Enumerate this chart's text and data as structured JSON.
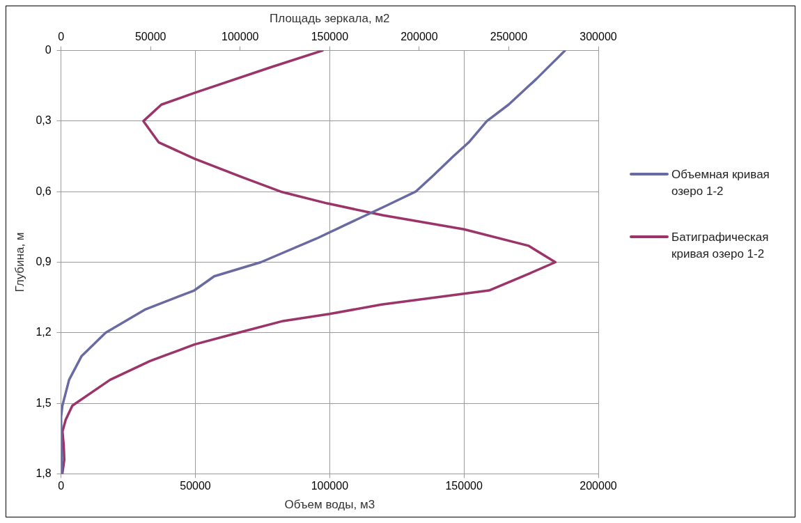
{
  "chart_data": {
    "type": "line",
    "xlabel": "Объем воды, м3",
    "x2label": "Площадь зеркала, м2",
    "ylabel": "Глубина, м",
    "xlim": [
      0,
      200000
    ],
    "xticks": [
      0,
      50000,
      100000,
      150000,
      200000
    ],
    "x2lim": [
      0,
      300000
    ],
    "x2ticks": [
      0,
      50000,
      100000,
      150000,
      200000,
      250000,
      300000
    ],
    "ylim": [
      1.8,
      0
    ],
    "yticks": [
      {
        "value": 0,
        "label": "0"
      },
      {
        "value": 0.3,
        "label": "0,3"
      },
      {
        "value": 0.6,
        "label": "0,6"
      },
      {
        "value": 0.9,
        "label": "0,9"
      },
      {
        "value": 1.2,
        "label": "1,2"
      },
      {
        "value": 1.5,
        "label": "1,5"
      },
      {
        "value": 1.8,
        "label": "1,8"
      }
    ],
    "grid": true,
    "legend": "right",
    "marker": "none",
    "line_style": "solid",
    "series": [
      {
        "name": "Объемная кривая озеро 1-2",
        "color": "#6a6aa2",
        "x": [
          187600,
          177000,
          166600,
          158500,
          151800,
          146000,
          138700,
          132000,
          121000,
          109800,
          95000,
          74400,
          57000,
          49600,
          31500,
          16600,
          7600,
          3000,
          500,
          0,
          200,
          300
        ],
        "values": [
          0,
          0.12,
          0.23,
          0.3,
          0.39,
          0.45,
          0.53,
          0.6,
          0.66,
          0.72,
          0.8,
          0.9,
          0.96,
          1.02,
          1.1,
          1.2,
          1.3,
          1.4,
          1.51,
          1.56,
          1.7,
          1.8
        ]
      },
      {
        "name": "Батиграфическая кривая озеро 1-2",
        "color": "#9b3468",
        "axis": "x2",
        "x": [
          146000,
          117500,
          74500,
          56000,
          46000,
          54500,
          74500,
          101600,
          122700,
          148700,
          179500,
          225000,
          261000,
          276000,
          261000,
          239000,
          179000,
          150000,
          124000,
          99000,
          74500,
          49700,
          27400,
          6300,
          2600,
          800,
          1500,
          1800,
          700
        ],
        "values": [
          0,
          0.07,
          0.18,
          0.23,
          0.3,
          0.39,
          0.46,
          0.54,
          0.6,
          0.65,
          0.7,
          0.76,
          0.83,
          0.9,
          0.95,
          1.02,
          1.08,
          1.12,
          1.15,
          1.2,
          1.25,
          1.32,
          1.4,
          1.51,
          1.57,
          1.62,
          1.68,
          1.74,
          1.8
        ]
      }
    ]
  }
}
